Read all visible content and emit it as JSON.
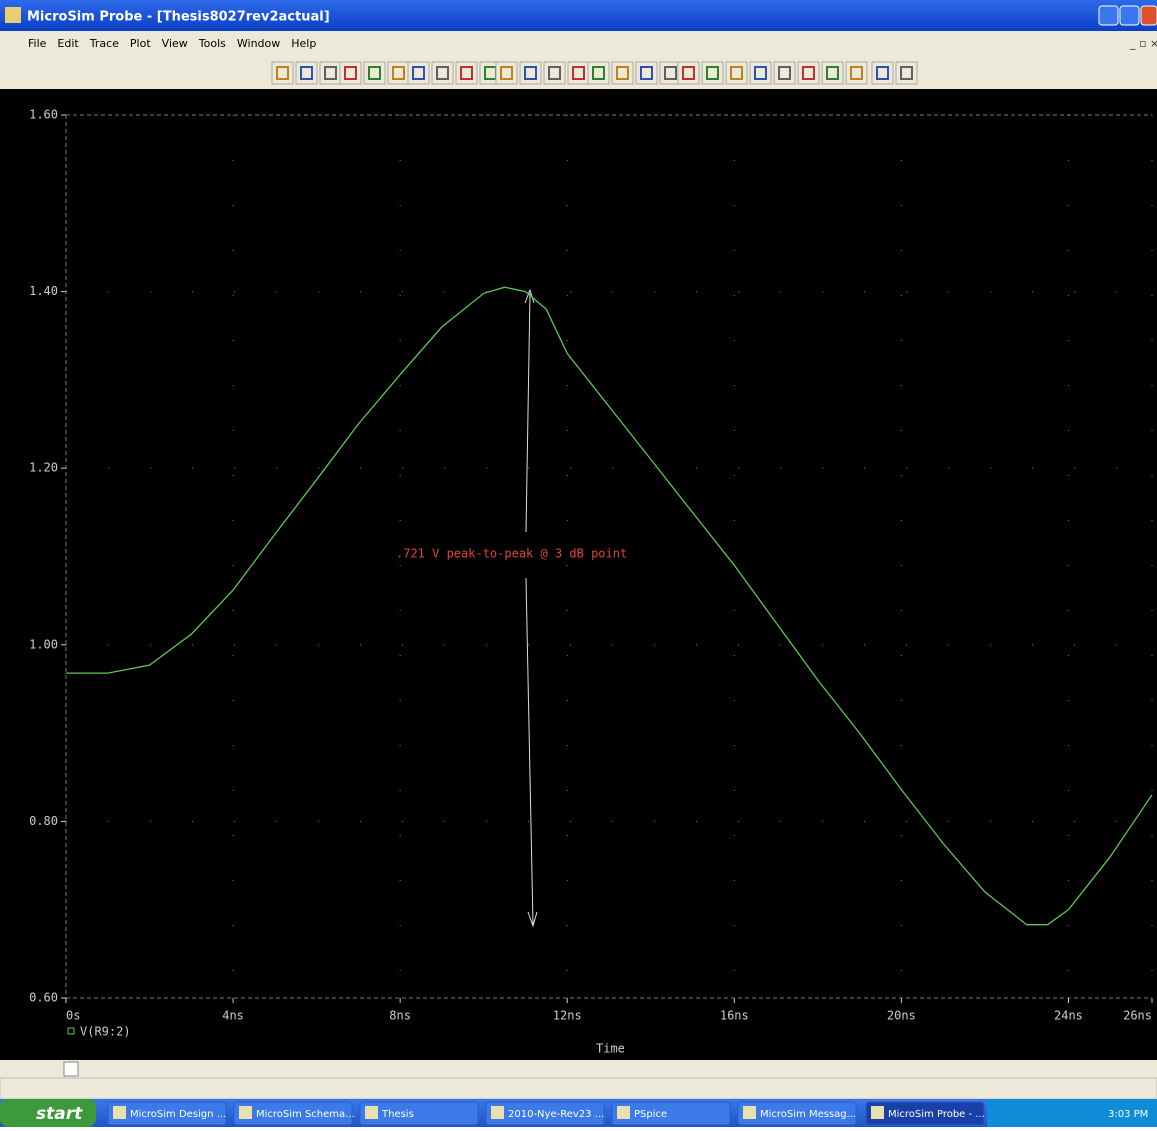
{
  "window": {
    "title": "MicroSim Probe - [Thesis8027rev2actual]",
    "menu": [
      "File",
      "Edit",
      "Trace",
      "Plot",
      "View",
      "Tools",
      "Window",
      "Help"
    ]
  },
  "chart_data": {
    "type": "line",
    "x_label": "Time",
    "annotation": ".721 V peak-to-peak @ 3 dB point",
    "x": [
      0,
      1,
      2,
      3,
      4,
      5,
      6,
      7,
      8,
      9,
      10,
      10.5,
      11,
      11.5,
      12,
      13,
      14,
      15,
      16,
      17,
      18,
      19,
      20,
      21,
      22,
      23,
      23.5,
      24,
      25,
      26
    ],
    "series": [
      {
        "name": "V(R9:2)",
        "color": "#5cc850",
        "values": [
          0.968,
          0.968,
          0.977,
          1.012,
          1.062,
          1.125,
          1.187,
          1.25,
          1.306,
          1.36,
          1.398,
          1.405,
          1.4,
          1.38,
          1.33,
          1.27,
          1.21,
          1.15,
          1.09,
          1.025,
          0.96,
          0.9,
          0.836,
          0.775,
          0.72,
          0.683,
          0.683,
          0.7,
          0.76,
          0.83
        ]
      }
    ],
    "xlim": [
      0,
      26
    ],
    "xticks": [
      {
        "value": 0,
        "label": "0s"
      },
      {
        "value": 4,
        "label": "4ns"
      },
      {
        "value": 8,
        "label": "8ns"
      },
      {
        "value": 12,
        "label": "12ns"
      },
      {
        "value": 16,
        "label": "16ns"
      },
      {
        "value": 20,
        "label": "20ns"
      },
      {
        "value": 24,
        "label": "24ns"
      },
      {
        "value": 26,
        "label": "26ns"
      }
    ],
    "ylim": [
      0.6,
      1.6
    ],
    "yticks": [
      {
        "value": 0.6,
        "label": "0.60"
      },
      {
        "value": 0.8,
        "label": "0.80"
      },
      {
        "value": 1.0,
        "label": "1.00"
      },
      {
        "value": 1.2,
        "label": "1.20"
      },
      {
        "value": 1.4,
        "label": "1.40"
      },
      {
        "value": 1.6,
        "label": "1.60"
      }
    ],
    "grid": true
  },
  "taskbar": {
    "start": "start",
    "items": [
      "MicroSim Design ...",
      "MicroSim Schema...",
      "Thesis",
      "2010-Nye-Rev23 ...",
      "PSpice",
      "MicroSim Messag...",
      "MicroSim Probe - ..."
    ],
    "clock": "3:03 PM"
  }
}
